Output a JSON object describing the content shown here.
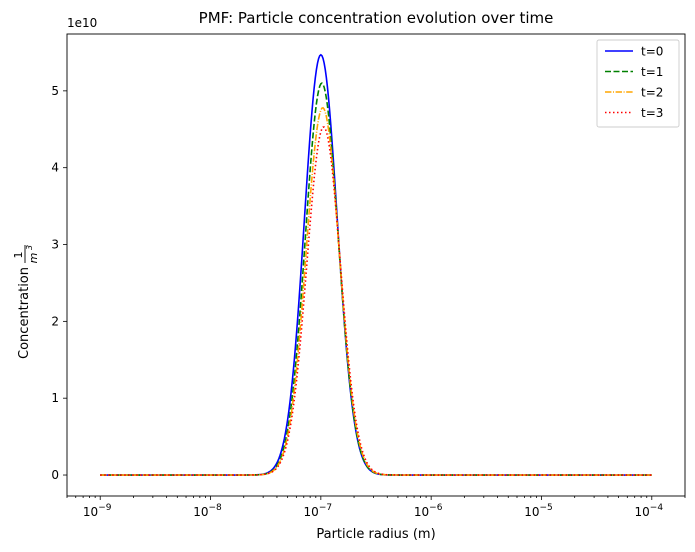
{
  "chart_data": {
    "type": "line",
    "title": "PMF: Particle concentration evolution over time",
    "xlabel": "Particle radius (m)",
    "ylabel_prefix": "Concentration",
    "ylabel_fraction": {
      "numerator": "1",
      "denominator_base": "m",
      "denominator_exp": "3"
    },
    "x_scale": "log",
    "xlim": [
      5e-10,
      0.0002
    ],
    "ylim": [
      -2730000000.0,
      57400000000.0
    ],
    "y_offset_label": "1e10",
    "x_ticks": [
      {
        "value": 1e-09,
        "base": "10",
        "exp": "−9"
      },
      {
        "value": 1e-08,
        "base": "10",
        "exp": "−8"
      },
      {
        "value": 1e-07,
        "base": "10",
        "exp": "−7"
      },
      {
        "value": 1e-06,
        "base": "10",
        "exp": "−6"
      },
      {
        "value": 1e-05,
        "base": "10",
        "exp": "−5"
      },
      {
        "value": 0.0001,
        "base": "10",
        "exp": "−4"
      }
    ],
    "y_ticks": [
      {
        "value": 0,
        "label": "0"
      },
      {
        "value": 10000000000.0,
        "label": "1"
      },
      {
        "value": 20000000000.0,
        "label": "2"
      },
      {
        "value": 30000000000.0,
        "label": "3"
      },
      {
        "value": 40000000000.0,
        "label": "4"
      },
      {
        "value": 50000000000.0,
        "label": "5"
      }
    ],
    "grid": false,
    "legend_position": "top-right",
    "series": [
      {
        "name": "t=0",
        "color": "#0000ff",
        "dash": "solid",
        "peak_x": 1e-07,
        "peak_y": 54700000000.0,
        "sigma_log10": 0.1495
      },
      {
        "name": "t=1",
        "color": "#008000",
        "dash": "dashed",
        "peak_x": 1.02e-07,
        "peak_y": 51000000000.0,
        "sigma_log10": 0.149
      },
      {
        "name": "t=2",
        "color": "#ffa500",
        "dash": "dashdot",
        "peak_x": 1.04e-07,
        "peak_y": 47800000000.0,
        "sigma_log10": 0.1505
      },
      {
        "name": "t=3",
        "color": "#ff0000",
        "dash": "dotted",
        "peak_x": 1.06e-07,
        "peak_y": 45300000000.0,
        "sigma_log10": 0.152
      }
    ]
  }
}
